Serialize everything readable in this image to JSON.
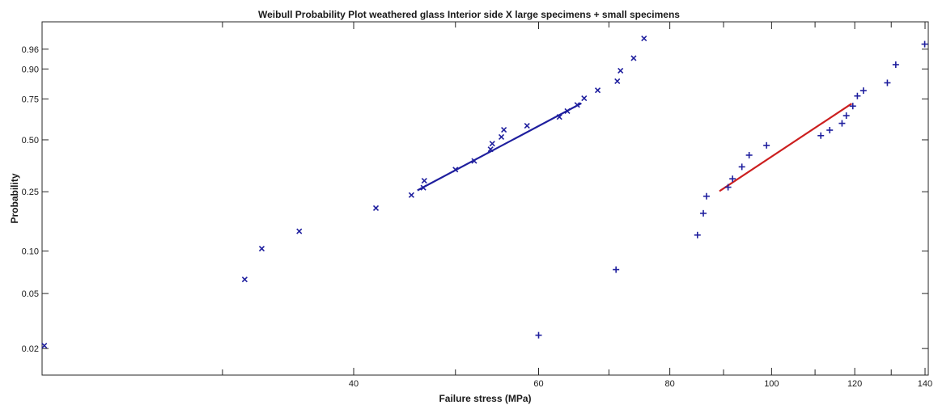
{
  "chart_data": {
    "type": "scatter",
    "title": "Weibull Probability Plot weathered glass  Interior side  X large specimens  + small specimens",
    "xlabel": "Failure stress (MPa)",
    "ylabel": "Probability",
    "x_scale": "log",
    "y_scale": "weibull",
    "xlim": [
      20.2,
      141
    ],
    "ylim": [
      0.0128,
      0.994
    ],
    "grid": false,
    "x_tick_labels": [
      "40",
      "60",
      "80",
      "100",
      "120",
      "140"
    ],
    "y_tick_labels": [
      "0.02",
      "0.05",
      "0.10",
      "0.25",
      "0.50",
      "0.75",
      "0.90",
      "0.96"
    ],
    "marker_color": "#1f1f9e",
    "series": [
      {
        "marker": "x",
        "points": [
          [
            20.3,
            0.021
          ],
          [
            31.5,
            0.063
          ],
          [
            32.7,
            0.104
          ],
          [
            35.5,
            0.137
          ],
          [
            42.0,
            0.196
          ],
          [
            45.4,
            0.238
          ],
          [
            46.6,
            0.265
          ],
          [
            46.7,
            0.293
          ],
          [
            50.0,
            0.342
          ],
          [
            52.1,
            0.384
          ],
          [
            54.0,
            0.446
          ],
          [
            54.2,
            0.478
          ],
          [
            55.3,
            0.517
          ],
          [
            55.6,
            0.56
          ],
          [
            58.5,
            0.585
          ],
          [
            62.8,
            0.64
          ],
          [
            63.9,
            0.676
          ],
          [
            65.3,
            0.714
          ],
          [
            66.3,
            0.754
          ],
          [
            68.3,
            0.799
          ],
          [
            71.3,
            0.846
          ],
          [
            71.8,
            0.893
          ],
          [
            73.9,
            0.937
          ],
          [
            75.6,
            0.979
          ]
        ]
      },
      {
        "marker": "+",
        "points": [
          [
            60.0,
            0.025
          ],
          [
            71.1,
            0.074
          ],
          [
            85.0,
            0.129
          ],
          [
            86.1,
            0.181
          ],
          [
            86.7,
            0.234
          ],
          [
            90.9,
            0.267
          ],
          [
            91.8,
            0.301
          ],
          [
            93.7,
            0.355
          ],
          [
            95.2,
            0.414
          ],
          [
            98.9,
            0.468
          ],
          [
            111.4,
            0.525
          ],
          [
            113.6,
            0.558
          ],
          [
            116.7,
            0.6
          ],
          [
            117.8,
            0.648
          ],
          [
            119.5,
            0.707
          ],
          [
            120.7,
            0.767
          ],
          [
            122.3,
            0.797
          ],
          [
            128.9,
            0.838
          ],
          [
            131.3,
            0.916
          ],
          [
            139.9,
            0.97
          ]
        ]
      }
    ],
    "fit_lines": [
      {
        "color": "#1f1f9e",
        "from": [
          46.0,
          0.255
        ],
        "to": [
          65.9,
          0.724
        ]
      },
      {
        "color": "#cc1f1f",
        "from": [
          89.2,
          0.252
        ],
        "to": [
          119.2,
          0.722
        ]
      }
    ]
  }
}
